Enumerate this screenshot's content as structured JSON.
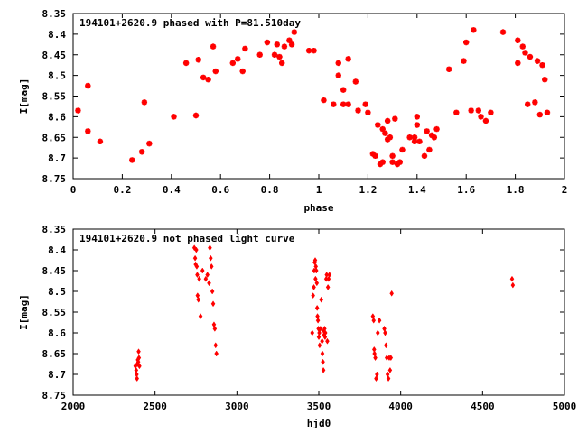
{
  "chart_data": [
    {
      "type": "scatter",
      "title": "194101+2620.9 phased with P=81.510day",
      "xlabel": "phase",
      "ylabel": "I[mag]",
      "xlim": [
        0,
        2
      ],
      "ylim": [
        8.75,
        8.35
      ],
      "y_inverted": true,
      "xticks": [
        "0",
        "0.2",
        "0.4",
        "0.6",
        "0.8",
        "1",
        "1.2",
        "1.4",
        "1.6",
        "1.8",
        "2"
      ],
      "yticks": [
        "8.35",
        "8.4",
        "8.45",
        "8.5",
        "8.55",
        "8.6",
        "8.65",
        "8.7",
        "8.75"
      ],
      "marker": "asterisk",
      "color": "#ff0000",
      "series": [
        {
          "x": [
            0.02,
            0.06,
            0.06,
            0.11,
            0.24,
            0.28,
            0.29,
            0.31,
            0.41,
            0.46,
            0.5,
            0.51,
            0.53,
            0.55,
            0.57,
            0.58,
            0.65,
            0.67,
            0.69,
            0.7,
            0.76,
            0.79,
            0.82,
            0.83,
            0.84,
            0.85,
            0.86,
            0.88,
            0.89,
            0.9,
            0.96,
            0.98,
            1.02,
            1.06,
            1.08,
            1.08,
            1.1,
            1.1,
            1.12,
            1.12,
            1.15,
            1.16,
            1.19,
            1.2,
            1.22,
            1.23,
            1.24,
            1.25,
            1.26,
            1.26,
            1.27,
            1.28,
            1.28,
            1.29,
            1.3,
            1.3,
            1.31,
            1.32,
            1.33,
            1.34,
            1.37,
            1.39,
            1.39,
            1.4,
            1.4,
            1.41,
            1.43,
            1.44,
            1.45,
            1.46,
            1.47,
            1.48,
            1.53,
            1.56,
            1.59,
            1.6,
            1.62,
            1.63,
            1.65,
            1.66,
            1.68,
            1.7,
            1.75,
            1.81,
            1.81,
            1.83,
            1.84,
            1.85,
            1.86,
            1.88,
            1.89,
            1.9,
            1.91,
            1.92,
            1.93
          ],
          "y": [
            8.585,
            8.635,
            8.525,
            8.66,
            8.705,
            8.685,
            8.565,
            8.665,
            8.6,
            8.47,
            8.597,
            8.462,
            8.505,
            8.51,
            8.43,
            8.49,
            8.47,
            8.46,
            8.49,
            8.435,
            8.45,
            8.42,
            8.45,
            8.425,
            8.455,
            8.47,
            8.43,
            8.415,
            8.425,
            8.395,
            8.44,
            8.44,
            8.56,
            8.57,
            8.47,
            8.5,
            8.57,
            8.535,
            8.46,
            8.57,
            8.515,
            8.585,
            8.57,
            8.59,
            8.69,
            8.695,
            8.62,
            8.715,
            8.63,
            8.71,
            8.64,
            8.61,
            8.655,
            8.65,
            8.695,
            8.71,
            8.605,
            8.715,
            8.71,
            8.68,
            8.65,
            8.65,
            8.66,
            8.62,
            8.6,
            8.66,
            8.695,
            8.635,
            8.68,
            8.645,
            8.65,
            8.63,
            8.485,
            8.59,
            8.465,
            8.42,
            8.585,
            8.39,
            8.585,
            8.6,
            8.61,
            8.59,
            8.395,
            8.415,
            8.47,
            8.43,
            8.445,
            8.57,
            8.455,
            8.565,
            8.465,
            8.595,
            8.475,
            8.51,
            8.59
          ]
        }
      ]
    },
    {
      "type": "scatter",
      "title": "194101+2620.9 not phased light curve",
      "xlabel": "hjd0",
      "ylabel": "I[mag]",
      "xlim": [
        2000,
        5000
      ],
      "ylim": [
        8.75,
        8.35
      ],
      "y_inverted": true,
      "xticks": [
        "2000",
        "2500",
        "3000",
        "3500",
        "4000",
        "4500",
        "5000"
      ],
      "yticks": [
        "8.35",
        "8.4",
        "8.45",
        "8.5",
        "8.55",
        "8.6",
        "8.65",
        "8.7",
        "8.75"
      ],
      "marker": "diamond",
      "color": "#ff0000",
      "series": [
        {
          "x": [
            2380,
            2385,
            2388,
            2390,
            2392,
            2395,
            2398,
            2400,
            2402,
            2405,
            2740,
            2745,
            2748,
            2752,
            2755,
            2758,
            2760,
            2765,
            2770,
            2778,
            2790,
            2810,
            2820,
            2830,
            2835,
            2840,
            2845,
            2850,
            2855,
            2860,
            2865,
            2870,
            2875,
            3460,
            3465,
            3470,
            3472,
            3475,
            3478,
            3480,
            3482,
            3485,
            3488,
            3490,
            3492,
            3495,
            3498,
            3500,
            3503,
            3505,
            3510,
            3515,
            3520,
            3522,
            3525,
            3528,
            3530,
            3532,
            3535,
            3538,
            3540,
            3545,
            3548,
            3552,
            3556,
            3560,
            3565,
            3830,
            3835,
            3838,
            3840,
            3845,
            3850,
            3855,
            3860,
            3870,
            3900,
            3905,
            3910,
            3915,
            3920,
            3925,
            3930,
            3935,
            3940,
            3945,
            4680,
            4685
          ],
          "y": [
            8.68,
            8.69,
            8.7,
            8.71,
            8.675,
            8.665,
            8.67,
            8.645,
            8.66,
            8.68,
            8.395,
            8.42,
            8.435,
            8.4,
            8.44,
            8.46,
            8.51,
            8.52,
            8.47,
            8.56,
            8.45,
            8.47,
            8.46,
            8.48,
            8.395,
            8.42,
            8.44,
            8.5,
            8.53,
            8.58,
            8.59,
            8.63,
            8.65,
            8.6,
            8.51,
            8.49,
            8.45,
            8.43,
            8.425,
            8.47,
            8.44,
            8.45,
            8.48,
            8.54,
            8.56,
            8.57,
            8.59,
            8.61,
            8.6,
            8.63,
            8.59,
            8.52,
            8.62,
            8.65,
            8.67,
            8.69,
            8.595,
            8.605,
            8.59,
            8.61,
            8.6,
            8.47,
            8.46,
            8.62,
            8.49,
            8.47,
            8.46,
            8.56,
            8.57,
            8.64,
            8.65,
            8.66,
            8.71,
            8.7,
            8.6,
            8.57,
            8.59,
            8.6,
            8.63,
            8.66,
            8.7,
            8.71,
            8.66,
            8.69,
            8.66,
            8.505,
            8.47,
            8.485
          ]
        }
      ]
    }
  ]
}
